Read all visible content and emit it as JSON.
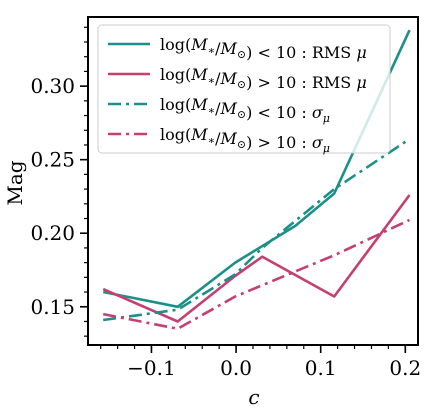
{
  "chart_data": {
    "type": "line",
    "xlabel": "c",
    "ylabel": "Mag",
    "xlim": [
      -0.175,
      0.215
    ],
    "ylim": [
      0.124,
      0.347
    ],
    "xticks": [
      -0.1,
      0.0,
      0.1,
      0.2
    ],
    "xtick_labels": [
      "−0.1",
      "0.0",
      "0.1",
      "0.2"
    ],
    "yticks": [
      0.15,
      0.2,
      0.25,
      0.3
    ],
    "ytick_labels": [
      "0.15",
      "0.20",
      "0.25",
      "0.30"
    ],
    "x_minor_step": 0.02,
    "y_minor_step": 0.01,
    "grid": false,
    "legend_position": "top-left",
    "colors": {
      "teal": "#1b9089",
      "pink": "#c43f72"
    },
    "series": [
      {
        "name": "log(M*/M⊙) < 10 : RMS μ",
        "color": "#1b9089",
        "style": "solid",
        "x": [
          -0.157,
          -0.069,
          -0.001,
          0.07,
          0.116,
          0.205
        ],
        "y": [
          0.16,
          0.15,
          0.18,
          0.205,
          0.227,
          0.338
        ]
      },
      {
        "name": "log(M*/M⊙) > 10 : RMS μ",
        "color": "#c43f72",
        "style": "solid",
        "x": [
          -0.157,
          -0.069,
          -0.001,
          0.031,
          0.116,
          0.205
        ],
        "y": [
          0.162,
          0.14,
          0.171,
          0.184,
          0.157,
          0.226
        ]
      },
      {
        "name": "log(M*/M⊙) < 10 : σμ",
        "color": "#1b9089",
        "style": "dashdot",
        "x": [
          -0.157,
          -0.069,
          -0.001,
          0.031,
          0.116,
          0.205
        ],
        "y": [
          0.141,
          0.148,
          0.172,
          0.19,
          0.23,
          0.264
        ]
      },
      {
        "name": "log(M*/M⊙) > 10 : σμ",
        "color": "#c43f72",
        "style": "dashdot",
        "x": [
          -0.157,
          -0.069,
          -0.001,
          0.116,
          0.205
        ],
        "y": [
          0.145,
          0.135,
          0.157,
          0.185,
          0.209
        ]
      }
    ],
    "legend_entries": [
      {
        "prefix": "log(",
        "mass": "M",
        "star": "∗",
        "slash": "/",
        "msun": "M",
        "sun": "⊙",
        "close": ")",
        "op": " < 10 : RMS ",
        "mu": "μ",
        "sub": ""
      },
      {
        "prefix": "log(",
        "mass": "M",
        "star": "∗",
        "slash": "/",
        "msun": "M",
        "sun": "⊙",
        "close": ")",
        "op": " > 10 : RMS ",
        "mu": "μ",
        "sub": ""
      },
      {
        "prefix": "log(",
        "mass": "M",
        "star": "∗",
        "slash": "/",
        "msun": "M",
        "sun": "⊙",
        "close": ")",
        "op": " < 10 : ",
        "mu": "σ",
        "sub": "μ"
      },
      {
        "prefix": "log(",
        "mass": "M",
        "star": "∗",
        "slash": "/",
        "msun": "M",
        "sun": "⊙",
        "close": ")",
        "op": " > 10 : ",
        "mu": "σ",
        "sub": "μ"
      }
    ]
  }
}
